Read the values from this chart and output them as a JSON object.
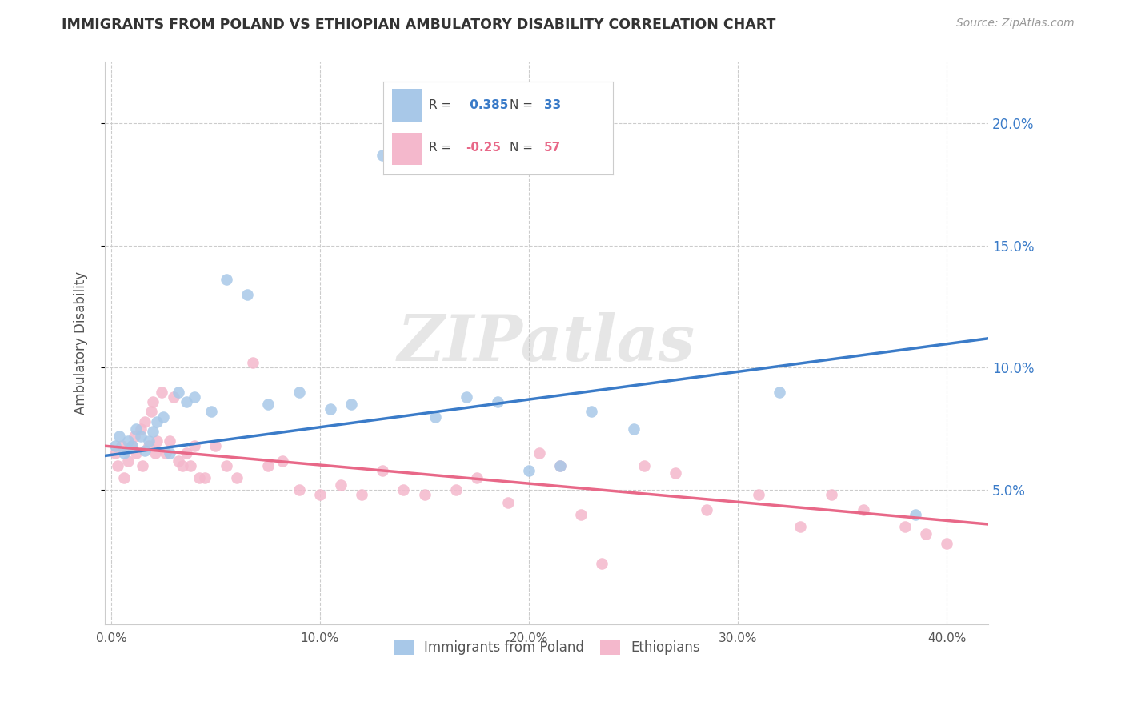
{
  "title": "IMMIGRANTS FROM POLAND VS ETHIOPIAN AMBULATORY DISABILITY CORRELATION CHART",
  "source": "Source: ZipAtlas.com",
  "ylabel": "Ambulatory Disability",
  "xlabel_ticks": [
    "0.0%",
    "10.0%",
    "20.0%",
    "30.0%",
    "40.0%"
  ],
  "xlabel_vals": [
    0.0,
    0.1,
    0.2,
    0.3,
    0.4
  ],
  "ylabel_ticks": [
    "5.0%",
    "10.0%",
    "15.0%",
    "20.0%"
  ],
  "ylabel_vals": [
    0.05,
    0.1,
    0.15,
    0.2
  ],
  "ylim": [
    -0.005,
    0.225
  ],
  "xlim": [
    -0.003,
    0.42
  ],
  "blue_r": 0.385,
  "blue_n": 33,
  "pink_r": -0.25,
  "pink_n": 57,
  "blue_color": "#a8c8e8",
  "pink_color": "#f4b8cc",
  "blue_line_color": "#3a7bc8",
  "pink_line_color": "#e86888",
  "blue_points_x": [
    0.002,
    0.004,
    0.006,
    0.008,
    0.01,
    0.012,
    0.014,
    0.016,
    0.018,
    0.02,
    0.022,
    0.025,
    0.028,
    0.032,
    0.036,
    0.04,
    0.048,
    0.055,
    0.065,
    0.075,
    0.09,
    0.105,
    0.115,
    0.13,
    0.155,
    0.17,
    0.185,
    0.2,
    0.215,
    0.23,
    0.25,
    0.32,
    0.385
  ],
  "blue_points_y": [
    0.068,
    0.072,
    0.065,
    0.07,
    0.068,
    0.075,
    0.072,
    0.066,
    0.07,
    0.074,
    0.078,
    0.08,
    0.065,
    0.09,
    0.086,
    0.088,
    0.082,
    0.136,
    0.13,
    0.085,
    0.09,
    0.083,
    0.085,
    0.187,
    0.08,
    0.088,
    0.086,
    0.058,
    0.06,
    0.082,
    0.075,
    0.09,
    0.04
  ],
  "pink_points_x": [
    0.002,
    0.003,
    0.005,
    0.006,
    0.008,
    0.01,
    0.011,
    0.012,
    0.014,
    0.015,
    0.016,
    0.018,
    0.019,
    0.02,
    0.021,
    0.022,
    0.024,
    0.026,
    0.028,
    0.03,
    0.032,
    0.034,
    0.036,
    0.038,
    0.04,
    0.042,
    0.045,
    0.05,
    0.055,
    0.06,
    0.068,
    0.075,
    0.082,
    0.09,
    0.1,
    0.11,
    0.12,
    0.13,
    0.14,
    0.15,
    0.165,
    0.175,
    0.19,
    0.205,
    0.215,
    0.225,
    0.235,
    0.255,
    0.27,
    0.285,
    0.31,
    0.33,
    0.345,
    0.36,
    0.38,
    0.39,
    0.4
  ],
  "pink_points_y": [
    0.065,
    0.06,
    0.068,
    0.055,
    0.062,
    0.068,
    0.072,
    0.065,
    0.075,
    0.06,
    0.078,
    0.068,
    0.082,
    0.086,
    0.065,
    0.07,
    0.09,
    0.065,
    0.07,
    0.088,
    0.062,
    0.06,
    0.065,
    0.06,
    0.068,
    0.055,
    0.055,
    0.068,
    0.06,
    0.055,
    0.102,
    0.06,
    0.062,
    0.05,
    0.048,
    0.052,
    0.048,
    0.058,
    0.05,
    0.048,
    0.05,
    0.055,
    0.045,
    0.065,
    0.06,
    0.04,
    0.02,
    0.06,
    0.057,
    0.042,
    0.048,
    0.035,
    0.048,
    0.042,
    0.035,
    0.032,
    0.028
  ],
  "blue_trendline": [
    0.064,
    0.112
  ],
  "pink_trendline": [
    0.068,
    0.036
  ],
  "watermark_text": "ZIPatlas",
  "legend_label_blue": "Immigrants from Poland",
  "legend_label_pink": "Ethiopians"
}
